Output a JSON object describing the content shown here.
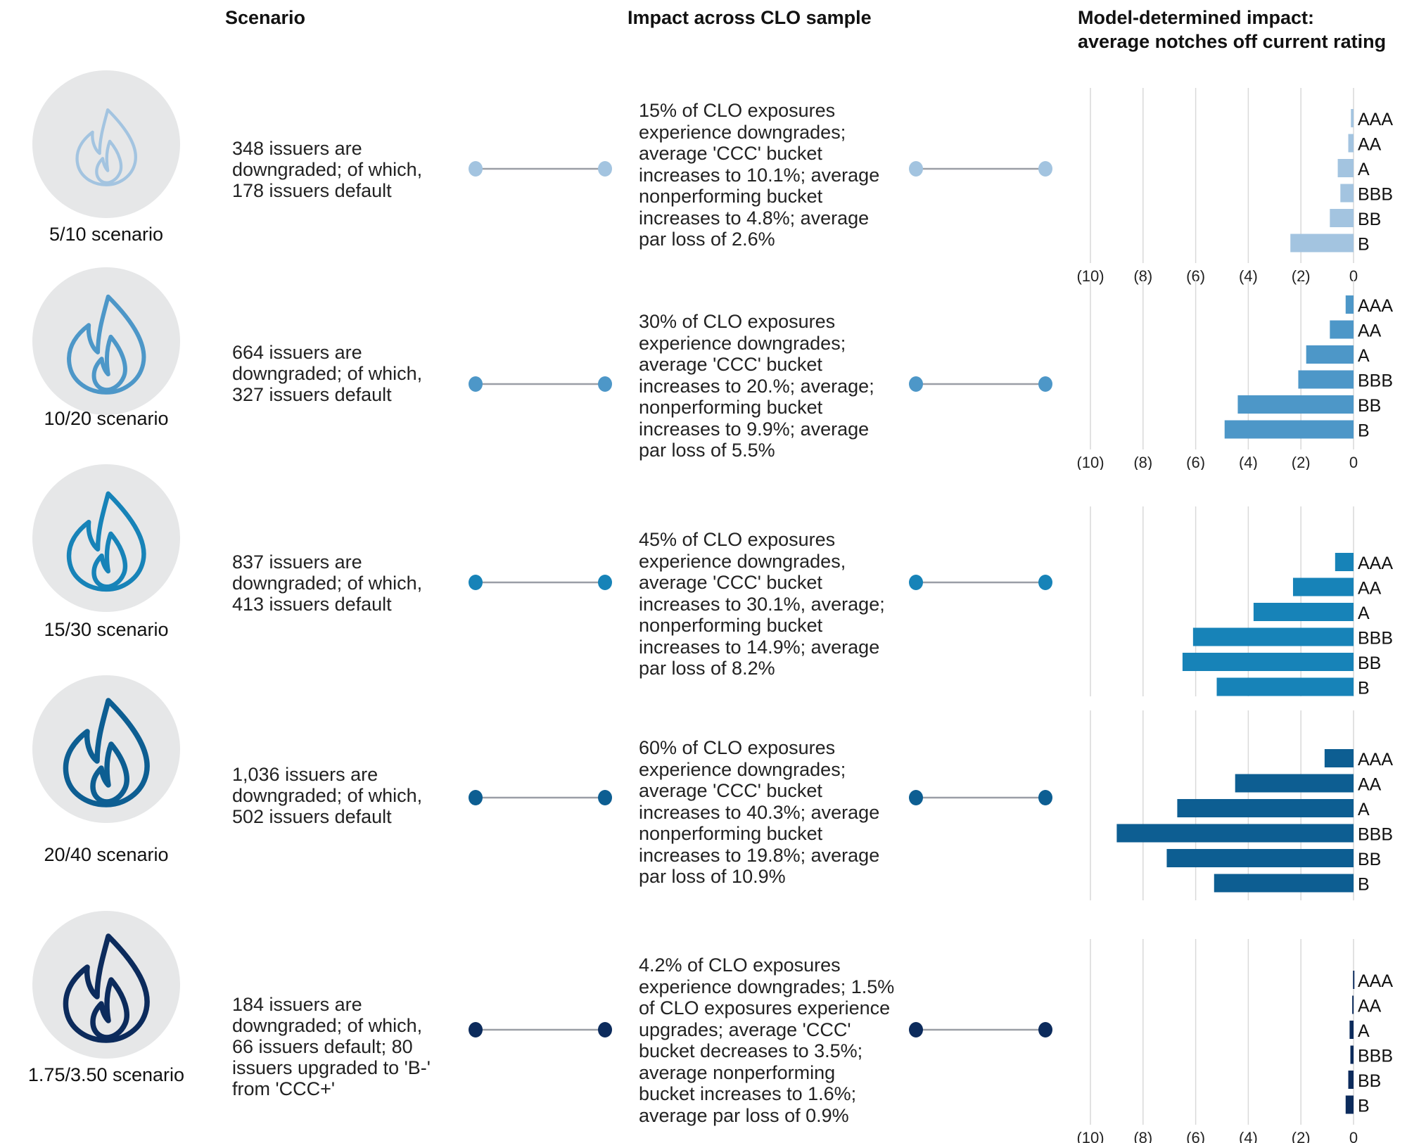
{
  "headers": {
    "scenario": "Scenario",
    "impact": "Impact across CLO sample",
    "model_line1": "Model-determined impact:",
    "model_line2": "average notches off current rating"
  },
  "colors": {
    "circle_bg": "#e6e7e8",
    "grid": "#d9d9d9",
    "connector_line": "#9a9ea6",
    "scenario_1": "#a3c4e0",
    "scenario_2": "#4d97c8",
    "scenario_3": "#1783b8",
    "scenario_4": "#0d5e92",
    "scenario_5": "#0c2b5c"
  },
  "scenarios": [
    {
      "label": "5/10 scenario",
      "icon": "flame-icon",
      "description": [
        "348 issuers are",
        "downgraded; of which,",
        "178 issuers default"
      ],
      "impact": [
        "15% of CLO exposures",
        "experience downgrades;",
        "average 'CCC' bucket",
        "increases to 10.1%; average",
        "nonperforming bucket",
        "increases to 4.8%; average",
        "par loss of 2.6%"
      ]
    },
    {
      "label": "10/20 scenario",
      "icon": "flame-icon",
      "description": [
        "664 issuers are",
        "downgraded; of which,",
        "327 issuers default"
      ],
      "impact": [
        "30% of CLO exposures",
        "experience downgrades;",
        "average 'CCC' bucket",
        "increases to 20.%; average;",
        "nonperforming bucket",
        "increases to 9.9%; average",
        "par loss of 5.5%"
      ]
    },
    {
      "label": "15/30 scenario",
      "icon": "flame-icon",
      "description": [
        "837 issuers are",
        "downgraded; of which,",
        "413 issuers default"
      ],
      "impact": [
        "45% of CLO exposures",
        "experience downgrades,",
        "average 'CCC' bucket",
        "increases to 30.1%, average;",
        "nonperforming bucket",
        "increases to 14.9%; average",
        "par loss of 8.2%"
      ]
    },
    {
      "label": "20/40 scenario",
      "icon": "flame-icon",
      "description": [
        "1,036 issuers are",
        "downgraded; of which,",
        "502 issuers default"
      ],
      "impact": [
        "60% of CLO exposures",
        "experience downgrades;",
        "average 'CCC' bucket",
        "increases to 40.3%; average",
        "nonperforming bucket",
        "increases to 19.8%; average",
        "par loss of 10.9%"
      ]
    },
    {
      "label": "1.75/3.50 scenario",
      "icon": "flame-icon",
      "description": [
        "184 issuers are",
        "downgraded; of which,",
        "66 issuers default; 80",
        "issuers upgraded to 'B-'",
        "from 'CCC+'"
      ],
      "impact": [
        "4.2% of CLO exposures",
        "experience downgrades; 1.5%",
        "of CLO exposures experience",
        "upgrades; average 'CCC'",
        "bucket decreases to 3.5%;",
        "average nonperforming",
        "bucket increases to 1.6%;",
        "average par loss of 0.9%"
      ]
    }
  ],
  "chart_data": [
    {
      "type": "bar",
      "orientation": "horizontal",
      "categories": [
        "AAA",
        "AA",
        "A",
        "BBB",
        "BB",
        "B"
      ],
      "values": [
        -0.1,
        -0.2,
        -0.6,
        -0.5,
        -0.9,
        -2.4
      ],
      "xlim": [
        -10,
        0
      ],
      "xticks": [
        "(10)",
        "(8)",
        "(6)",
        "(4)",
        "(2)",
        "0"
      ],
      "grid": true
    },
    {
      "type": "bar",
      "orientation": "horizontal",
      "categories": [
        "AAA",
        "AA",
        "A",
        "BBB",
        "BB",
        "B"
      ],
      "values": [
        -0.3,
        -0.9,
        -1.8,
        -2.1,
        -4.4,
        -4.9
      ],
      "xlim": [
        -10,
        0
      ],
      "xticks": [
        "(10)",
        "(8)",
        "(6)",
        "(4)",
        "(2)",
        "0"
      ],
      "grid": true
    },
    {
      "type": "bar",
      "orientation": "horizontal",
      "categories": [
        "AAA",
        "AA",
        "A",
        "BBB",
        "BB",
        "B"
      ],
      "values": [
        -0.7,
        -2.3,
        -3.8,
        -6.1,
        -6.5,
        -5.2
      ],
      "xlim": [
        -10,
        0
      ],
      "xticks": [
        "(10)",
        "(8)",
        "(6)",
        "(4)",
        "(2)",
        "0"
      ],
      "grid": true
    },
    {
      "type": "bar",
      "orientation": "horizontal",
      "categories": [
        "AAA",
        "AA",
        "A",
        "BBB",
        "BB",
        "B"
      ],
      "values": [
        -1.1,
        -4.5,
        -6.7,
        -9.0,
        -7.1,
        -5.3
      ],
      "xlim": [
        -10,
        0
      ],
      "xticks": [
        "(10)",
        "(8)",
        "(6)",
        "(4)",
        "(2)",
        "0"
      ],
      "grid": true
    },
    {
      "type": "bar",
      "orientation": "horizontal",
      "categories": [
        "AAA",
        "AA",
        "A",
        "BBB",
        "BB",
        "B"
      ],
      "values": [
        -0.02,
        -0.05,
        -0.15,
        -0.12,
        -0.2,
        -0.3
      ],
      "xlim": [
        -10,
        0
      ],
      "xticks": [
        "(10)",
        "(8)",
        "(6)",
        "(4)",
        "(2)",
        "0"
      ],
      "grid": true
    }
  ]
}
